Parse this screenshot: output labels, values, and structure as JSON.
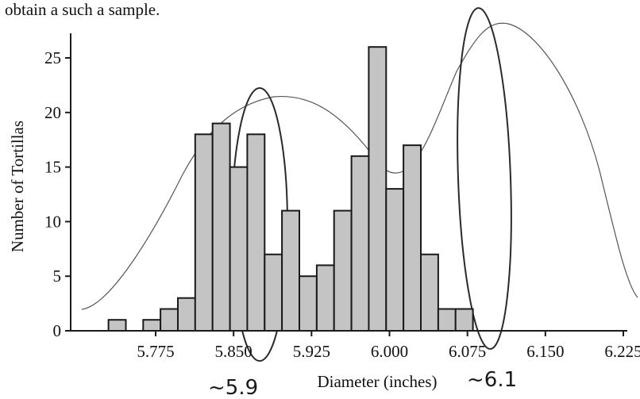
{
  "intro_text": "obtain a such a sample.",
  "chart_data": {
    "type": "bar",
    "title": "",
    "xlabel": "Diameter (inches)",
    "ylabel": "Number of Tortillas",
    "bin_width": 0.0167,
    "bin_start": 5.725,
    "counts": [
      1,
      0,
      1,
      2,
      3,
      18,
      19,
      15,
      18,
      7,
      11,
      5,
      6,
      11,
      16,
      26,
      13,
      17,
      7,
      2,
      2
    ],
    "xticks": [
      5.775,
      5.85,
      5.925,
      6.0,
      6.075,
      6.15,
      6.225
    ],
    "xtick_labels": [
      "5.775",
      "5.850",
      "5.925",
      "6.000",
      "6.075",
      "6.150",
      "6.225"
    ],
    "yticks": [
      0,
      5,
      10,
      15,
      20,
      25
    ],
    "ylim": [
      0,
      27
    ],
    "xlim": [
      5.72,
      6.243
    ],
    "grid": false
  },
  "annotations": {
    "peak_left_label": "~5.9",
    "peak_right_label": "~6.1"
  }
}
